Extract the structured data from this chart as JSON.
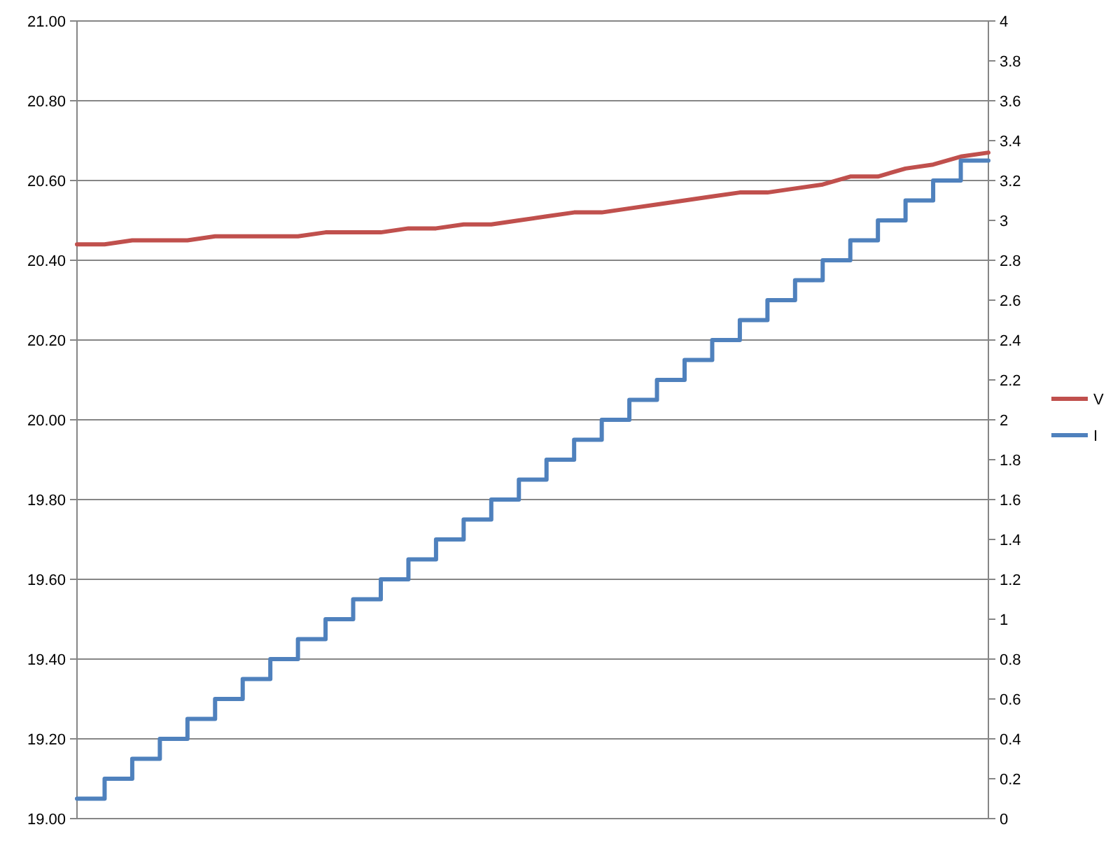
{
  "chart_data": {
    "type": "line",
    "categories": [
      null,
      null,
      null,
      null,
      null,
      null,
      null,
      null,
      null,
      null,
      null,
      null,
      null,
      null,
      null,
      null,
      null,
      null,
      null,
      null,
      null,
      null,
      null,
      null,
      null,
      null,
      null,
      null,
      null,
      null,
      null,
      null,
      null,
      null
    ],
    "series": [
      {
        "name": "V",
        "color": "#c0504d",
        "type": "line",
        "values": [
          20.44,
          20.44,
          20.45,
          20.45,
          20.45,
          20.46,
          20.46,
          20.46,
          20.46,
          20.47,
          20.47,
          20.47,
          20.48,
          20.48,
          20.49,
          20.49,
          20.5,
          20.51,
          20.52,
          20.52,
          20.53,
          20.54,
          20.55,
          20.56,
          20.57,
          20.57,
          20.58,
          20.59,
          20.61,
          20.61,
          20.63,
          20.64,
          20.66,
          20.67
        ]
      },
      {
        "name": "I",
        "color": "#4f81bd",
        "type": "step",
        "axis": "y2",
        "values": [
          0.1,
          0.2,
          0.3,
          0.4,
          0.5,
          0.6,
          0.7,
          0.8,
          0.9,
          1,
          1.1,
          1.2,
          1.3,
          1.4,
          1.5,
          1.6,
          1.7,
          1.8,
          1.9,
          2,
          2.1,
          2.2,
          2.3,
          2.4,
          2.5,
          2.6,
          2.7,
          2.8,
          2.9,
          3,
          3.1,
          3.2,
          3.3,
          3.3
        ]
      }
    ],
    "ylim": [
      19,
      21
    ],
    "yticks": [
      {
        "value": 19,
        "label": "19.00"
      },
      {
        "value": 19.2,
        "label": "19.20"
      },
      {
        "value": 19.4,
        "label": "19.40"
      },
      {
        "value": 19.6,
        "label": "19.60"
      },
      {
        "value": 19.8,
        "label": "19.80"
      },
      {
        "value": 20,
        "label": "20.00"
      },
      {
        "value": 20.2,
        "label": "20.20"
      },
      {
        "value": 20.4,
        "label": "20.40"
      },
      {
        "value": 20.6,
        "label": "20.60"
      },
      {
        "value": 20.8,
        "label": "20.80"
      },
      {
        "value": 21,
        "label": "21.00"
      }
    ],
    "y2lim": [
      0,
      4
    ],
    "y2ticks": [
      0,
      0.2,
      0.4,
      0.6,
      0.8,
      1,
      1.2,
      1.4,
      1.6,
      1.8,
      2,
      2.2,
      2.4,
      2.6,
      2.8,
      3,
      3.2,
      3.4,
      3.6,
      3.8,
      4
    ],
    "grid": "y",
    "legend": "right"
  }
}
